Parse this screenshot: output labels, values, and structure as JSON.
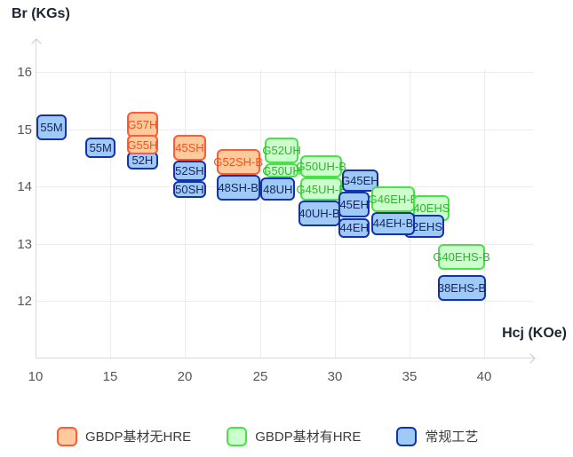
{
  "axis": {
    "y_title": "Br (KGs)",
    "x_title": "Hcj (KOe)"
  },
  "legend": [
    {
      "label": "GBDP基材无HRE",
      "category": "orange"
    },
    {
      "label": "GBDP基材有HRE",
      "category": "green"
    },
    {
      "label": "常规工艺",
      "category": "blue"
    }
  ],
  "chart_data": {
    "type": "scatter",
    "title": "",
    "xlabel": "Hcj (KOe)",
    "ylabel": "Br (KGs)",
    "xlim": [
      10,
      43.4
    ],
    "ylim": [
      11,
      16.55
    ],
    "x_ticks": [
      10,
      15,
      20,
      25,
      30,
      35,
      40
    ],
    "y_ticks": [
      16,
      15,
      14,
      13,
      12
    ],
    "grid": true,
    "legend_position": "bottom",
    "categories": {
      "orange": {
        "name": "GBDP基材无HRE",
        "fill": "#ffcb9c",
        "border": "#ff5b3a",
        "text": "#f4511e"
      },
      "green": {
        "name": "GBDP基材有HRE",
        "fill": "#ccffcc",
        "border": "#4ae24a",
        "text": "#2eb52e"
      },
      "blue": {
        "name": "常规工艺",
        "fill": "#9fc9f7",
        "border": "#1233ad",
        "text": "#16255e"
      }
    },
    "boxes": [
      {
        "label": "55M",
        "category": "blue",
        "hcj": [
          10.05,
          12.1
        ],
        "br": [
          14.8,
          15.25
        ]
      },
      {
        "label": "55M",
        "category": "blue",
        "hcj": [
          13.35,
          15.35
        ],
        "br": [
          14.5,
          14.85
        ]
      },
      {
        "label": "52H",
        "category": "blue",
        "hcj": [
          16.1,
          18.2
        ],
        "br": [
          14.3,
          14.6
        ]
      },
      {
        "label": "G57H",
        "category": "orange",
        "hcj": [
          16.1,
          18.2
        ],
        "br": [
          14.85,
          15.3
        ]
      },
      {
        "label": "G55H",
        "category": "orange",
        "hcj": [
          16.1,
          18.2
        ],
        "br": [
          14.55,
          14.9
        ]
      },
      {
        "label": "52SH",
        "category": "blue",
        "hcj": [
          19.2,
          21.4
        ],
        "br": [
          14.1,
          14.45
        ]
      },
      {
        "label": "50SH",
        "category": "blue",
        "hcj": [
          19.2,
          21.4
        ],
        "br": [
          13.8,
          14.1
        ]
      },
      {
        "label": "45SH",
        "category": "orange",
        "hcj": [
          19.2,
          21.4
        ],
        "br": [
          14.45,
          14.9
        ]
      },
      {
        "label": "48SH-B",
        "category": "blue",
        "hcj": [
          22.1,
          25.0
        ],
        "br": [
          13.75,
          14.2
        ]
      },
      {
        "label": "G52SH-B",
        "category": "orange",
        "hcj": [
          22.1,
          25.0
        ],
        "br": [
          14.2,
          14.65
        ]
      },
      {
        "label": "48UH",
        "category": "blue",
        "hcj": [
          25.05,
          27.35
        ],
        "br": [
          13.75,
          14.15
        ]
      },
      {
        "label": "G52UH",
        "category": "green",
        "hcj": [
          25.3,
          27.6
        ],
        "br": [
          14.4,
          14.85
        ]
      },
      {
        "label": "G50UH",
        "category": "green",
        "hcj": [
          25.3,
          27.6
        ],
        "br": [
          14.15,
          14.4
        ]
      },
      {
        "label": "G50UH-B",
        "category": "green",
        "hcj": [
          27.7,
          30.5
        ],
        "br": [
          14.15,
          14.55
        ]
      },
      {
        "label": "G45UH-B",
        "category": "green",
        "hcj": [
          27.7,
          30.5
        ],
        "br": [
          13.75,
          14.15
        ]
      },
      {
        "label": "40UH-B",
        "category": "blue",
        "hcj": [
          27.6,
          30.35
        ],
        "br": [
          13.3,
          13.75
        ]
      },
      {
        "label": "G45EH",
        "category": "blue",
        "hcj": [
          30.5,
          32.9
        ],
        "br": [
          13.9,
          14.3
        ]
      },
      {
        "label": "45EH",
        "category": "blue",
        "hcj": [
          30.25,
          32.35
        ],
        "br": [
          13.45,
          13.9
        ]
      },
      {
        "label": "44EH",
        "category": "blue",
        "hcj": [
          30.25,
          32.35
        ],
        "br": [
          13.1,
          13.45
        ]
      },
      {
        "label": "G46EH-B",
        "category": "green",
        "hcj": [
          32.45,
          35.35
        ],
        "br": [
          13.55,
          14.0
        ]
      },
      {
        "label": "40EHS",
        "category": "green",
        "hcj": [
          35.25,
          37.7
        ],
        "br": [
          13.4,
          13.85
        ]
      },
      {
        "label": "42EHS",
        "category": "blue",
        "hcj": [
          34.65,
          37.3
        ],
        "br": [
          13.1,
          13.5
        ]
      },
      {
        "label": "44EH-B",
        "category": "blue",
        "hcj": [
          32.45,
          35.35
        ],
        "br": [
          13.15,
          13.55
        ]
      },
      {
        "label": "G40EHS-B",
        "category": "green",
        "hcj": [
          36.9,
          40.05
        ],
        "br": [
          12.55,
          13.0
        ]
      },
      {
        "label": "38EHS-B",
        "category": "blue",
        "hcj": [
          36.9,
          40.1
        ],
        "br": [
          12.0,
          12.45
        ]
      }
    ]
  }
}
